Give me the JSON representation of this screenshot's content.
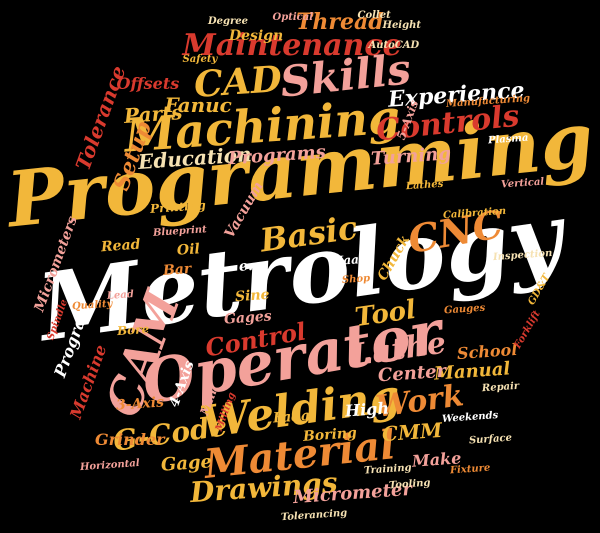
{
  "background": "#000000",
  "palette": {
    "white": "#ffffff",
    "yellow": "#f2b73a",
    "orange": "#ee8a35",
    "red": "#d93a2e",
    "darkred": "#b5281f",
    "pink": "#f3a19a",
    "cream": "#f6e2b3"
  },
  "words": [
    {
      "text": "Programming",
      "color": "yellow"
    },
    {
      "text": "Metrology",
      "color": "white"
    },
    {
      "text": "Operator",
      "color": "pink"
    },
    {
      "text": "Machining",
      "color": "yellow"
    },
    {
      "text": "Welding",
      "color": "yellow"
    },
    {
      "text": "Material",
      "color": "orange"
    },
    {
      "text": "Maintenance",
      "color": "red"
    },
    {
      "text": "Skills",
      "color": "pink"
    },
    {
      "text": "CAD",
      "color": "yellow"
    },
    {
      "text": "CAM",
      "color": "pink"
    },
    {
      "text": "CNC",
      "color": "orange"
    },
    {
      "text": "Controls",
      "color": "red"
    },
    {
      "text": "Experience",
      "color": "white"
    },
    {
      "text": "Basic",
      "color": "yellow"
    },
    {
      "text": "Lathe",
      "color": "pink"
    },
    {
      "text": "Tool",
      "color": "yellow"
    },
    {
      "text": "Control",
      "color": "red"
    },
    {
      "text": "Work",
      "color": "orange"
    },
    {
      "text": "G-Code",
      "color": "yellow"
    },
    {
      "text": "Drawings",
      "color": "yellow"
    },
    {
      "text": "Education",
      "color": "cream"
    },
    {
      "text": "Programs",
      "color": "pink"
    },
    {
      "text": "Setup",
      "color": "orange"
    },
    {
      "text": "Tolerance",
      "color": "red"
    },
    {
      "text": "Parts",
      "color": "yellow"
    },
    {
      "text": "Fanuc",
      "color": "yellow"
    },
    {
      "text": "Turning",
      "color": "pink"
    },
    {
      "text": "Thread",
      "color": "orange"
    },
    {
      "text": "Design",
      "color": "yellow"
    },
    {
      "text": "Offsets",
      "color": "red"
    },
    {
      "text": "CMM",
      "color": "yellow"
    },
    {
      "text": "Micrometer",
      "color": "pink"
    },
    {
      "text": "Manual",
      "color": "yellow"
    },
    {
      "text": "School",
      "color": "orange"
    },
    {
      "text": "Center",
      "color": "pink"
    },
    {
      "text": "Boring",
      "color": "yellow"
    },
    {
      "text": "High",
      "color": "white"
    },
    {
      "text": "Fadal",
      "color": "yellow"
    },
    {
      "text": "Make",
      "color": "pink"
    },
    {
      "text": "Gage",
      "color": "yellow"
    },
    {
      "text": "Grinder",
      "color": "orange"
    },
    {
      "text": "Machine",
      "color": "red"
    },
    {
      "text": "Program",
      "color": "white"
    },
    {
      "text": "3-Axis",
      "color": "orange"
    },
    {
      "text": "4-Axis",
      "color": "white"
    },
    {
      "text": "5-Axis",
      "color": "pink"
    },
    {
      "text": "Bore",
      "color": "yellow"
    },
    {
      "text": "Gages",
      "color": "pink"
    },
    {
      "text": "Sine",
      "color": "yellow"
    },
    {
      "text": "Bar",
      "color": "orange"
    },
    {
      "text": "Oil",
      "color": "yellow"
    },
    {
      "text": "Haas",
      "color": "white"
    },
    {
      "text": "Read",
      "color": "yellow"
    },
    {
      "text": "Vacuum",
      "color": "pink"
    },
    {
      "text": "Chuck",
      "color": "yellow"
    },
    {
      "text": "Micrometers",
      "color": "pink"
    },
    {
      "text": "Printing",
      "color": "yellow"
    },
    {
      "text": "e.g",
      "color": "white"
    },
    {
      "text": "Spindle",
      "color": "red"
    },
    {
      "text": "Calibration",
      "color": "yellow"
    },
    {
      "text": "Manufacturing",
      "color": "orange"
    },
    {
      "text": "Surface",
      "color": "cream"
    },
    {
      "text": "Fixture",
      "color": "orange"
    },
    {
      "text": "GD&T",
      "color": "yellow"
    },
    {
      "text": "Tooling",
      "color": "cream"
    },
    {
      "text": "Tolerancing",
      "color": "cream"
    },
    {
      "text": "AutoCAD",
      "color": "cream"
    },
    {
      "text": "Optical",
      "color": "pink"
    },
    {
      "text": "Height",
      "color": "cream"
    },
    {
      "text": "Gauges",
      "color": "orange"
    },
    {
      "text": "Mill",
      "color": "pink"
    },
    {
      "text": "Milling",
      "color": "red"
    },
    {
      "text": "Lathes",
      "color": "yellow"
    },
    {
      "text": "Vertical",
      "color": "pink"
    },
    {
      "text": "Horizontal",
      "color": "pink"
    },
    {
      "text": "Collet",
      "color": "cream"
    },
    {
      "text": "Shop",
      "color": "orange"
    },
    {
      "text": "Blueprint",
      "color": "pink"
    },
    {
      "text": "Inspection",
      "color": "cream"
    },
    {
      "text": "Plasma",
      "color": "white"
    },
    {
      "text": "Forklift",
      "color": "red"
    },
    {
      "text": "Repair",
      "color": "cream"
    },
    {
      "text": "Safety",
      "color": "yellow"
    },
    {
      "text": "Quality",
      "color": "orange"
    },
    {
      "text": "Degree",
      "color": "cream"
    },
    {
      "text": "Weekends",
      "color": "white"
    },
    {
      "text": "Lead",
      "color": "pink"
    },
    {
      "text": "Training",
      "color": "cream"
    }
  ]
}
